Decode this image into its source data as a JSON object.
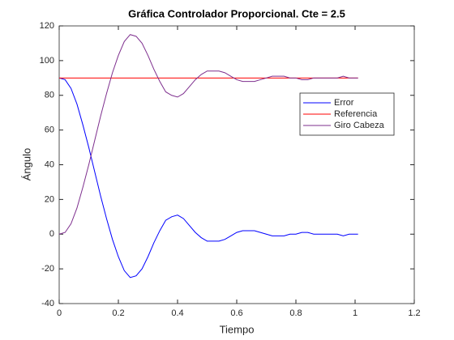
{
  "chart_data": {
    "type": "line",
    "title": "Gráfica Controlador Proporcional. Cte = 2.5",
    "x_label": "Tiempo",
    "y_label": "Ángulo",
    "xlim": [
      0,
      1.2
    ],
    "xticks": [
      0,
      0.2,
      0.4,
      0.6,
      0.8,
      1,
      1.2
    ],
    "ylim": [
      -40,
      120
    ],
    "yticks": [
      -40,
      -20,
      0,
      20,
      40,
      60,
      80,
      100,
      120
    ],
    "legend": "upper right",
    "series": [
      {
        "name": "Error",
        "color": "#0000ff",
        "x": [
          0,
          0.02,
          0.04,
          0.06,
          0.08,
          0.1,
          0.12,
          0.14,
          0.16,
          0.18,
          0.2,
          0.22,
          0.24,
          0.26,
          0.28,
          0.3,
          0.32,
          0.34,
          0.36,
          0.38,
          0.4,
          0.42,
          0.44,
          0.46,
          0.48,
          0.5,
          0.52,
          0.54,
          0.56,
          0.58,
          0.6,
          0.62,
          0.64,
          0.66,
          0.68,
          0.7,
          0.72,
          0.74,
          0.76,
          0.78,
          0.8,
          0.82,
          0.84,
          0.86,
          0.88,
          0.9,
          0.92,
          0.94,
          0.96,
          0.98,
          1.0,
          1.01
        ],
        "values": [
          90,
          89,
          84,
          75,
          63,
          50,
          36,
          22,
          9,
          -3,
          -13,
          -21,
          -25,
          -24,
          -20,
          -13,
          -5,
          2,
          8,
          10,
          11,
          9,
          5,
          1,
          -2,
          -4,
          -4,
          -4,
          -3,
          -1,
          1,
          2,
          2,
          2,
          1,
          0,
          -1,
          -1,
          -1,
          0,
          0,
          1,
          1,
          0,
          0,
          0,
          0,
          0,
          -1,
          0,
          0,
          0
        ]
      },
      {
        "name": "Referencia",
        "color": "#ff0000",
        "x": [
          0,
          1.01
        ],
        "values": [
          90,
          90
        ]
      },
      {
        "name": "Giro Cabeza",
        "color": "#7e2f8e",
        "x": [
          0,
          0.02,
          0.04,
          0.06,
          0.08,
          0.1,
          0.12,
          0.14,
          0.16,
          0.18,
          0.2,
          0.22,
          0.24,
          0.26,
          0.28,
          0.3,
          0.32,
          0.34,
          0.36,
          0.38,
          0.4,
          0.42,
          0.44,
          0.46,
          0.48,
          0.5,
          0.52,
          0.54,
          0.56,
          0.58,
          0.6,
          0.62,
          0.64,
          0.66,
          0.68,
          0.7,
          0.72,
          0.74,
          0.76,
          0.78,
          0.8,
          0.82,
          0.84,
          0.86,
          0.88,
          0.9,
          0.92,
          0.94,
          0.96,
          0.98,
          1.0,
          1.01
        ],
        "values": [
          0,
          1,
          6,
          15,
          27,
          40,
          54,
          68,
          81,
          93,
          103,
          111,
          115,
          114,
          110,
          103,
          95,
          88,
          82,
          80,
          79,
          81,
          85,
          89,
          92,
          94,
          94,
          94,
          93,
          91,
          89,
          88,
          88,
          88,
          89,
          90,
          91,
          91,
          91,
          90,
          90,
          89,
          89,
          90,
          90,
          90,
          90,
          90,
          91,
          90,
          90,
          90
        ]
      }
    ]
  }
}
